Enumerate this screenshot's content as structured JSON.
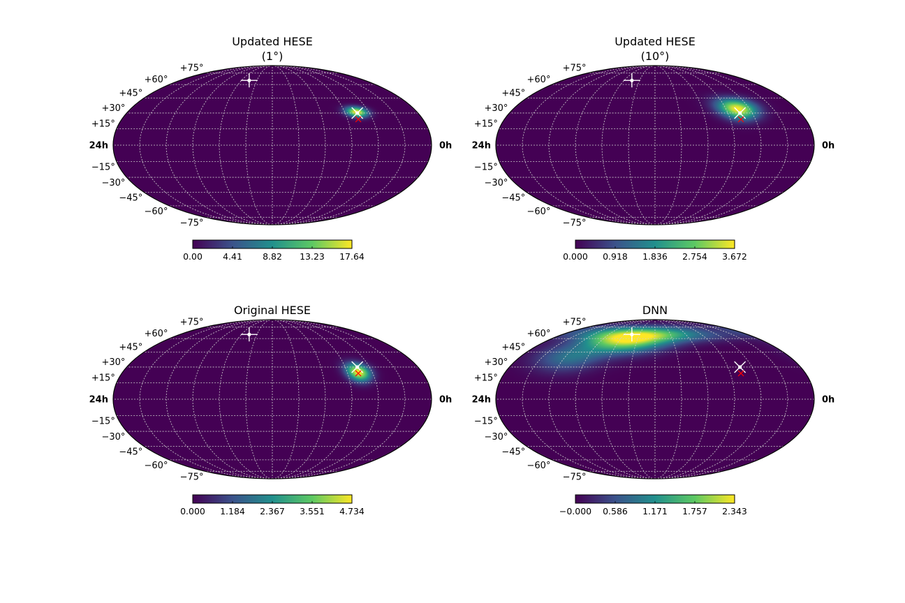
{
  "figure": {
    "colormap": "viridis",
    "colormap_stops": [
      "#440154",
      "#3b528b",
      "#21908d",
      "#5dc963",
      "#fde725"
    ],
    "grid_color": "#cfcfcf",
    "marker_colors": {
      "white_marker": "#ffffff",
      "red_marker": "#ff0000"
    }
  },
  "chart_data": [
    {
      "type": "heatmap",
      "projection": "mollweide",
      "title_lines": [
        "Updated HESE",
        "(1°)"
      ],
      "hour_labels": {
        "left": "24h",
        "right": "0h"
      },
      "dec_tick_labels": [
        "+75°",
        "+60°",
        "+45°",
        "+30°",
        "+15°",
        "−15°",
        "−30°",
        "−45°",
        "−60°",
        "−75°"
      ],
      "colorbar_ticks": [
        "0.00",
        "4.41",
        "8.82",
        "13.23",
        "17.64"
      ],
      "value_range": [
        0,
        17.64
      ],
      "hotspots": [
        {
          "ra_h": 5.0,
          "dec": 31,
          "sigma_ra_deg": 8,
          "sigma_dec_deg": 3.5,
          "peak": 17.64
        }
      ],
      "markers": [
        {
          "kind": "white-cross",
          "ra_h": 15.0,
          "dec": 65
        },
        {
          "kind": "white-x",
          "ra_h": 5.0,
          "dec": 30
        },
        {
          "kind": "red-x",
          "ra_h": 5.15,
          "dec": 24
        }
      ]
    },
    {
      "type": "heatmap",
      "projection": "mollweide",
      "title_lines": [
        "Updated HESE",
        "(10°)"
      ],
      "hour_labels": {
        "left": "24h",
        "right": "0h"
      },
      "dec_tick_labels": [
        "+75°",
        "+60°",
        "+45°",
        "+30°",
        "+15°",
        "−15°",
        "−30°",
        "−45°",
        "−60°",
        "−75°"
      ],
      "colorbar_ticks": [
        "0.000",
        "0.918",
        "1.836",
        "2.754",
        "3.672"
      ],
      "value_range": [
        0,
        3.672
      ],
      "hotspots": [
        {
          "ra_h": 5.0,
          "dec": 34,
          "sigma_ra_deg": 14,
          "sigma_dec_deg": 7,
          "peak": 3.672
        }
      ],
      "markers": [
        {
          "kind": "white-cross",
          "ra_h": 15.0,
          "dec": 65
        },
        {
          "kind": "white-x",
          "ra_h": 5.0,
          "dec": 30
        },
        {
          "kind": "red-x",
          "ra_h": 5.15,
          "dec": 24
        }
      ]
    },
    {
      "type": "heatmap",
      "projection": "mollweide",
      "title_lines": [
        "Original HESE"
      ],
      "hour_labels": {
        "left": "24h",
        "right": "0h"
      },
      "dec_tick_labels": [
        "+75°",
        "+60°",
        "+45°",
        "+30°",
        "+15°",
        "−15°",
        "−30°",
        "−45°",
        "−60°",
        "−75°"
      ],
      "colorbar_ticks": [
        "0.000",
        "1.184",
        "2.367",
        "3.551",
        "4.734"
      ],
      "value_range": [
        0,
        4.734
      ],
      "hotspots": [
        {
          "ra_h": 5.1,
          "dec": 25,
          "sigma_ra_deg": 9,
          "sigma_dec_deg": 6,
          "peak": 4.734
        }
      ],
      "markers": [
        {
          "kind": "white-cross",
          "ra_h": 15.0,
          "dec": 65
        },
        {
          "kind": "white-x",
          "ra_h": 5.0,
          "dec": 30
        },
        {
          "kind": "red-x",
          "ra_h": 5.15,
          "dec": 24
        }
      ]
    },
    {
      "type": "heatmap",
      "projection": "mollweide",
      "title_lines": [
        "DNN"
      ],
      "hour_labels": {
        "left": "24h",
        "right": "0h"
      },
      "dec_tick_labels": [
        "+75°",
        "+60°",
        "+45°",
        "+30°",
        "+15°",
        "−15°",
        "−30°",
        "−45°",
        "−60°",
        "−75°"
      ],
      "colorbar_ticks": [
        "−0.000",
        "0.586",
        "1.171",
        "1.757",
        "2.343"
      ],
      "value_range": [
        0,
        2.343
      ],
      "hotspots": [
        {
          "ra_h": 15.0,
          "dec": 60,
          "sigma_ra_deg": 28,
          "sigma_dec_deg": 10,
          "peak": 2.343
        },
        {
          "ra_h": 9.0,
          "dec": 64,
          "sigma_ra_deg": 40,
          "sigma_dec_deg": 6,
          "peak": 0.6
        },
        {
          "ra_h": 19.5,
          "dec": 40,
          "sigma_ra_deg": 25,
          "sigma_dec_deg": 10,
          "peak": 0.9
        }
      ],
      "markers": [
        {
          "kind": "white-cross",
          "ra_h": 15.0,
          "dec": 65
        },
        {
          "kind": "white-x",
          "ra_h": 5.0,
          "dec": 30
        },
        {
          "kind": "red-x",
          "ra_h": 5.15,
          "dec": 24
        }
      ]
    }
  ]
}
